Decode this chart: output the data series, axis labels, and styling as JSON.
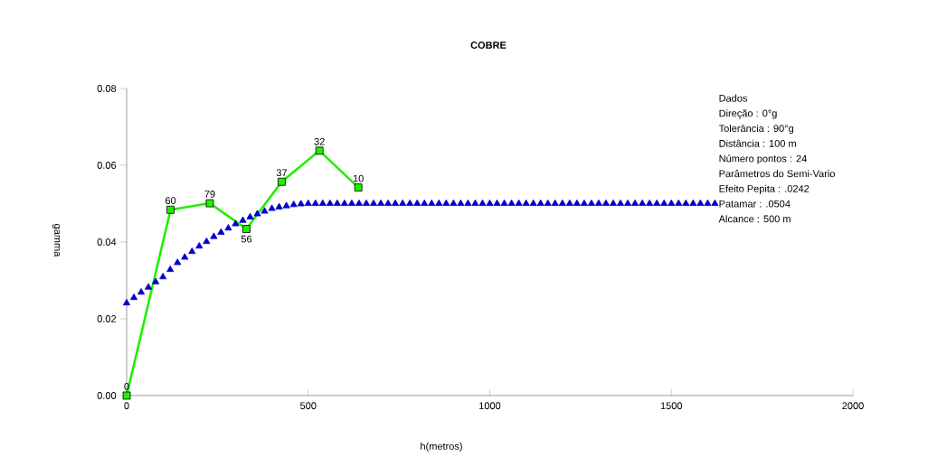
{
  "chart_data": {
    "type": "line",
    "title": "COBRE",
    "xlabel": "h(metros)",
    "ylabel": "gamma",
    "xlim": [
      0,
      2000
    ],
    "xticks": [
      0,
      500,
      1000,
      1500,
      2000
    ],
    "ylim": [
      0,
      0.08
    ],
    "yticks": [
      {
        "value": 0,
        "label": "0.00"
      },
      {
        "value": 0.02,
        "label": "0.02"
      },
      {
        "value": 0.04,
        "label": "0.04"
      },
      {
        "value": 0.06,
        "label": "0.06"
      },
      {
        "value": 0.08,
        "label": "0.08"
      }
    ],
    "grid": false,
    "series": [
      {
        "type": "scatter",
        "marker": "triangle",
        "color": "#0000cc",
        "x": [
          0,
          20,
          40,
          60,
          80,
          100,
          120,
          140,
          160,
          180,
          200,
          220,
          240,
          260,
          280,
          300,
          320,
          340,
          360,
          380,
          400,
          420,
          440,
          460,
          480,
          500,
          520,
          540,
          560,
          580,
          600,
          620,
          640,
          660,
          680,
          700,
          720,
          740,
          760,
          780,
          800,
          820,
          840,
          860,
          880,
          900,
          920,
          940,
          960,
          980,
          1000,
          1020,
          1040,
          1060,
          1080,
          1100,
          1120,
          1140,
          1160,
          1180,
          1200,
          1220,
          1240,
          1260,
          1280,
          1300,
          1320,
          1340,
          1360,
          1380,
          1400,
          1420,
          1440,
          1460,
          1480,
          1500,
          1520,
          1540,
          1560,
          1580,
          1600,
          1620
        ],
        "values": [
          0.0241,
          0.0255,
          0.0269,
          0.0282,
          0.0296,
          0.0309,
          0.0328,
          0.0346,
          0.036,
          0.0375,
          0.0389,
          0.0401,
          0.0414,
          0.0425,
          0.0436,
          0.0447,
          0.0456,
          0.0465,
          0.0473,
          0.048,
          0.0487,
          0.0491,
          0.0494,
          0.0497,
          0.0499,
          0.05,
          0.05,
          0.05,
          0.05,
          0.05,
          0.05,
          0.05,
          0.05,
          0.05,
          0.05,
          0.05,
          0.05,
          0.05,
          0.05,
          0.05,
          0.05,
          0.05,
          0.05,
          0.05,
          0.05,
          0.05,
          0.05,
          0.05,
          0.05,
          0.05,
          0.05,
          0.05,
          0.05,
          0.05,
          0.05,
          0.05,
          0.05,
          0.05,
          0.05,
          0.05,
          0.05,
          0.05,
          0.05,
          0.05,
          0.05,
          0.05,
          0.05,
          0.05,
          0.05,
          0.05,
          0.05,
          0.05,
          0.05,
          0.05,
          0.05,
          0.05,
          0.05,
          0.05,
          0.05,
          0.05,
          0.05,
          0.05
        ]
      },
      {
        "marker": "square",
        "color": "#22ee00",
        "x": [
          0,
          121,
          229,
          330,
          427,
          531,
          638
        ],
        "values": [
          0,
          0.0484,
          0.0501,
          0.0434,
          0.0557,
          0.0638,
          0.0542
        ]
      }
    ],
    "annotations": [
      {
        "text": "0",
        "x": 0,
        "y": 0
      },
      {
        "text": "60",
        "x": 121,
        "y": 0.0484
      },
      {
        "text": "79",
        "x": 229,
        "y": 0.0501
      },
      {
        "text": "56",
        "x": 330,
        "y": 0.0434
      },
      {
        "text": "37",
        "x": 427,
        "y": 0.0557
      },
      {
        "text": "32",
        "x": 531,
        "y": 0.0638
      },
      {
        "text": "10",
        "x": 638,
        "y": 0.0542
      },
      "Dados",
      "Direção : 0°g",
      "Tolerância : 90°g",
      "Distância : 100 m",
      "Número pontos : 24",
      "Parâmetros do Semi-Vario",
      "Efeito Pepita : .0242",
      "Patamar : .0504",
      "Alcance : 500 m"
    ]
  }
}
